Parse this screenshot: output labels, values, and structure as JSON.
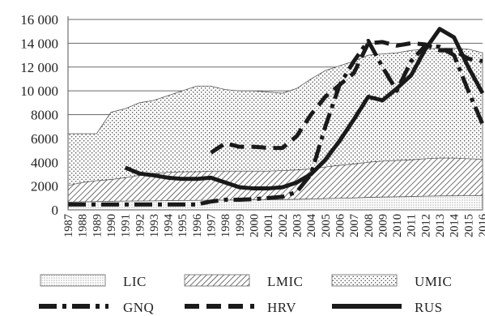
{
  "chart_data": {
    "type": "area",
    "title": "",
    "xlabel": "",
    "ylabel": "",
    "ylim": [
      0,
      16000
    ],
    "yticks": [
      0,
      2000,
      4000,
      6000,
      8000,
      10000,
      12000,
      14000,
      16000
    ],
    "ytick_labels": [
      "0",
      "2000",
      "4000",
      "6000",
      "8000",
      "10 000",
      "12 000",
      "14 000",
      "16 000"
    ],
    "x": [
      1987,
      1988,
      1989,
      1990,
      1991,
      1992,
      1993,
      1994,
      1995,
      1996,
      1997,
      1998,
      1999,
      2000,
      2001,
      2002,
      2003,
      2004,
      2005,
      2006,
      2007,
      2008,
      2009,
      2010,
      2011,
      2012,
      2013,
      2014,
      2015,
      2016
    ],
    "x_labels": [
      "1987",
      "1988",
      "1989",
      "1990",
      "1991",
      "1992",
      "1993",
      "1994",
      "1995",
      "1996",
      "1997",
      "1998",
      "1999",
      "2000",
      "2001",
      "2002",
      "2003",
      "2004",
      "2005",
      "2006",
      "2007",
      "2008",
      "2009",
      "2010",
      "2011",
      "2012",
      "2013",
      "2014",
      "2015",
      "2016"
    ],
    "grid": {
      "horizontal": true,
      "vertical": false
    },
    "legend_position": "bottom",
    "areas": [
      {
        "name": "UMIC",
        "pattern": "dots",
        "values": [
          6400,
          6400,
          6400,
          8200,
          8500,
          9000,
          9200,
          9600,
          10000,
          10400,
          10400,
          10100,
          10000,
          10000,
          9900,
          9800,
          10200,
          11000,
          11700,
          12100,
          12500,
          13000,
          13100,
          13200,
          13400,
          13500,
          13600,
          13600,
          13500,
          13200
        ]
      },
      {
        "name": "LMIC",
        "pattern": "hatch",
        "values": [
          2050,
          2300,
          2450,
          2550,
          2700,
          2900,
          3050,
          3150,
          3200,
          3200,
          3250,
          3250,
          3250,
          3250,
          3250,
          3300,
          3350,
          3450,
          3600,
          3750,
          3850,
          4000,
          4100,
          4150,
          4200,
          4300,
          4350,
          4350,
          4300,
          4250
        ]
      },
      {
        "name": "LIC",
        "pattern": "fine-dots",
        "values": [
          650,
          680,
          700,
          720,
          740,
          750,
          760,
          780,
          790,
          800,
          810,
          820,
          830,
          840,
          850,
          870,
          890,
          920,
          950,
          980,
          1000,
          1050,
          1080,
          1100,
          1120,
          1150,
          1170,
          1180,
          1190,
          1200
        ]
      }
    ],
    "series": [
      {
        "name": "GNQ",
        "style": "dash-dot",
        "x": [
          1987,
          1988,
          1989,
          1990,
          1991,
          1992,
          1993,
          1994,
          1995,
          1996,
          1997,
          1998,
          1999,
          2000,
          2001,
          2002,
          2003,
          2004,
          2005,
          2006,
          2007,
          2008,
          2009,
          2010,
          2011,
          2012,
          2013,
          2014,
          2015,
          2016
        ],
        "values": [
          450,
          450,
          450,
          450,
          450,
          450,
          450,
          450,
          450,
          450,
          700,
          850,
          850,
          900,
          1000,
          1100,
          1500,
          3000,
          7000,
          10500,
          12500,
          14200,
          12000,
          10000,
          12500,
          13800,
          13700,
          13000,
          10000,
          7200
        ]
      },
      {
        "name": "HRV",
        "style": "dashed",
        "x": [
          1997,
          1998,
          1999,
          2000,
          2001,
          2002,
          2003,
          2004,
          2005,
          2006,
          2007,
          2008,
          2009,
          2010,
          2011,
          2012,
          2013,
          2014,
          2015,
          2016
        ],
        "values": [
          4800,
          5600,
          5300,
          5300,
          5200,
          5200,
          6200,
          8000,
          9500,
          10500,
          11500,
          14000,
          14100,
          13800,
          14000,
          13900,
          13400,
          13400,
          12700,
          12500
        ]
      },
      {
        "name": "RUS",
        "style": "solid",
        "x": [
          1991,
          1992,
          1993,
          1994,
          1995,
          1996,
          1997,
          1998,
          1999,
          2000,
          2001,
          2002,
          2003,
          2004,
          2005,
          2006,
          2007,
          2008,
          2009,
          2010,
          2011,
          2012,
          2013,
          2014,
          2015,
          2016
        ],
        "values": [
          3550,
          3050,
          2900,
          2700,
          2600,
          2600,
          2700,
          2300,
          1900,
          1800,
          1800,
          1900,
          2300,
          3000,
          4200,
          5800,
          7600,
          9500,
          9200,
          10200,
          11300,
          13500,
          15200,
          14500,
          12000,
          9800
        ]
      }
    ]
  }
}
